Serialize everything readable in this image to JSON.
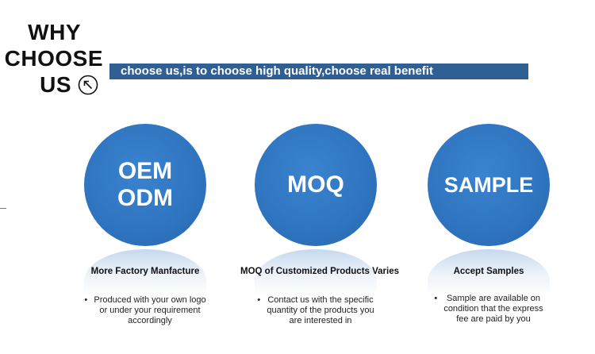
{
  "heading": {
    "line1": "WHY",
    "line2": "CHOOSE",
    "line3": "US",
    "arrow_icon": "arrow-up-left-circle-icon"
  },
  "banner": {
    "text": "choose us,is to choose high quality,choose real benefit"
  },
  "colors": {
    "banner": "#2f5f93",
    "circle": "#2f74bf",
    "text": "#111111"
  },
  "cards": [
    {
      "circle_text": "OEM\nODM",
      "title": "More Factory Manfacture",
      "bullet_symbol": "•",
      "bullet_text": "Produced with your own logo\nor under your requirement\naccordingly"
    },
    {
      "circle_text": "MOQ",
      "title": "MOQ of Customized Products Varies",
      "bullet_symbol": "•",
      "bullet_text": "Contact us with the specific\nquantity of the products you\nare interested in"
    },
    {
      "circle_text": "SAMPLE",
      "title": "Accept Samples",
      "bullet_symbol": "•",
      "bullet_text": "Sample are available on\ncondition that the express\nfee are paid by you"
    }
  ]
}
